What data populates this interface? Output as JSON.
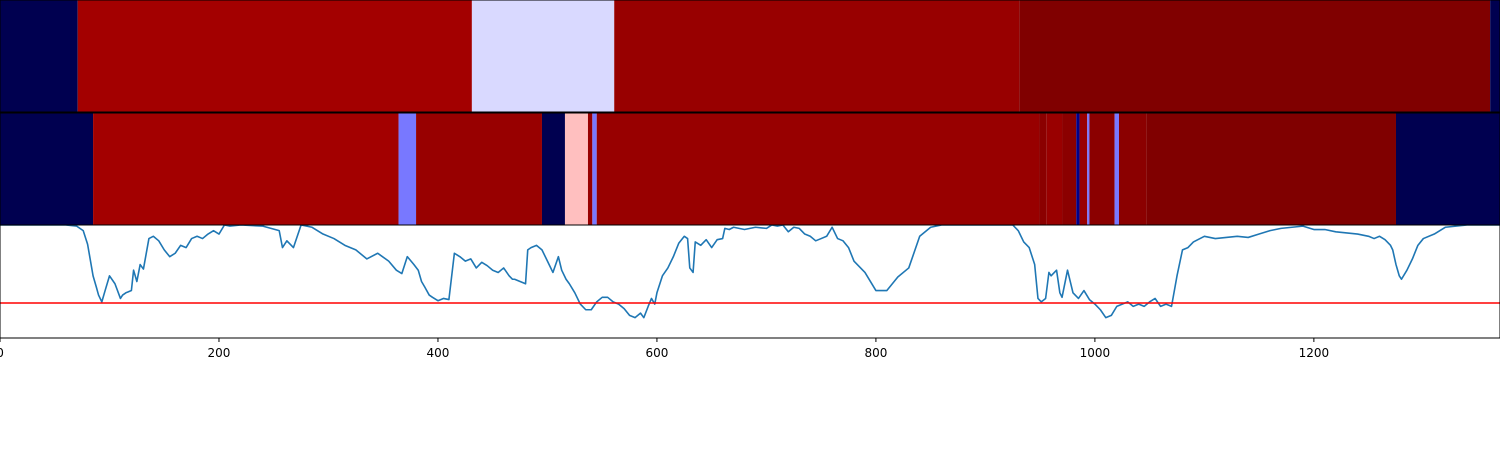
{
  "chart_data": [
    {
      "type": "heatmap",
      "panel": "segmentation-track-1",
      "x_range": [
        0,
        1370
      ],
      "segments": [
        {
          "start": 0,
          "end": 71,
          "color": "#000050"
        },
        {
          "start": 71,
          "end": 431,
          "color": "#a30000"
        },
        {
          "start": 431,
          "end": 561,
          "color": "#d9d9ff"
        },
        {
          "start": 561,
          "end": 931,
          "color": "#980000"
        },
        {
          "start": 931,
          "end": 1361,
          "color": "#800000"
        },
        {
          "start": 1361,
          "end": 1370,
          "color": "#000050"
        }
      ]
    },
    {
      "type": "heatmap",
      "panel": "segmentation-track-2",
      "x_range": [
        0,
        1370
      ],
      "segments": [
        {
          "start": 0,
          "end": 85,
          "color": "#000050"
        },
        {
          "start": 85,
          "end": 364,
          "color": "#a30000"
        },
        {
          "start": 364,
          "end": 380,
          "color": "#7878ff"
        },
        {
          "start": 380,
          "end": 495,
          "color": "#980000"
        },
        {
          "start": 495,
          "end": 516,
          "color": "#000050"
        },
        {
          "start": 516,
          "end": 537,
          "color": "#ffbfbf"
        },
        {
          "start": 537,
          "end": 541,
          "color": "#980000"
        },
        {
          "start": 541,
          "end": 545,
          "color": "#7878ff"
        },
        {
          "start": 545,
          "end": 949,
          "color": "#980000"
        },
        {
          "start": 949,
          "end": 956,
          "color": "#8b0000"
        },
        {
          "start": 956,
          "end": 970,
          "color": "#990000"
        },
        {
          "start": 970,
          "end": 983,
          "color": "#8b0000"
        },
        {
          "start": 983,
          "end": 986,
          "color": "#00008b"
        },
        {
          "start": 986,
          "end": 993,
          "color": "#990000"
        },
        {
          "start": 993,
          "end": 995,
          "color": "#7878ff"
        },
        {
          "start": 995,
          "end": 1018,
          "color": "#8b0000"
        },
        {
          "start": 1018,
          "end": 1022,
          "color": "#7878ff"
        },
        {
          "start": 1022,
          "end": 1047,
          "color": "#8b0000"
        },
        {
          "start": 1047,
          "end": 1275,
          "color": "#800000"
        },
        {
          "start": 1275,
          "end": 1370,
          "color": "#000050"
        }
      ]
    },
    {
      "type": "line",
      "panel": "signal",
      "xlim": [
        0,
        1370
      ],
      "ylim": [
        0,
        1
      ],
      "xticks": [
        0,
        200,
        400,
        600,
        800,
        1000,
        1200
      ],
      "threshold": {
        "y": 0.31,
        "color": "#ff0000"
      },
      "series": [
        {
          "color": "#1f77b4",
          "x": [
            0,
            60,
            70,
            76,
            80,
            85,
            88,
            90,
            93,
            96,
            100,
            105,
            110,
            112,
            115,
            120,
            122,
            125,
            128,
            131,
            136,
            140,
            145,
            150,
            155,
            160,
            165,
            170,
            175,
            180,
            185,
            190,
            195,
            200,
            205,
            210,
            220,
            240,
            255,
            258,
            262,
            268,
            275,
            285,
            295,
            305,
            315,
            325,
            335,
            345,
            355,
            362,
            367,
            372,
            378,
            382,
            385,
            388,
            392,
            395,
            400,
            405,
            410,
            415,
            420,
            425,
            430,
            435,
            440,
            445,
            450,
            455,
            460,
            465,
            468,
            470,
            480,
            482,
            485,
            490,
            495,
            500,
            505,
            510,
            513,
            517,
            520,
            525,
            530,
            535,
            540,
            545,
            550,
            555,
            560,
            565,
            570,
            575,
            580,
            585,
            588,
            592,
            595,
            598,
            600,
            605,
            610,
            615,
            620,
            625,
            628,
            630,
            633,
            635,
            640,
            645,
            650,
            655,
            660,
            662,
            666,
            670,
            680,
            690,
            700,
            705,
            710,
            715,
            720,
            725,
            730,
            735,
            740,
            745,
            750,
            755,
            760,
            765,
            770,
            775,
            780,
            790,
            800,
            810,
            820,
            830,
            840,
            850,
            860,
            870,
            880,
            890,
            900,
            910,
            915,
            920,
            925,
            930,
            935,
            940,
            945,
            948,
            951,
            955,
            958,
            960,
            965,
            968,
            970,
            975,
            980,
            985,
            990,
            995,
            1000,
            1005,
            1010,
            1015,
            1020,
            1025,
            1030,
            1035,
            1040,
            1045,
            1050,
            1055,
            1060,
            1065,
            1070,
            1075,
            1080,
            1085,
            1090,
            1100,
            1110,
            1120,
            1130,
            1140,
            1150,
            1160,
            1170,
            1180,
            1190,
            1200,
            1210,
            1220,
            1230,
            1240,
            1250,
            1255,
            1260,
            1265,
            1270,
            1272,
            1275,
            1278,
            1280,
            1285,
            1290,
            1295,
            1300,
            1310,
            1320,
            1330,
            1340,
            1350,
            1360,
            1370
          ],
          "y": [
            1.0,
            1.0,
            0.99,
            0.95,
            0.83,
            0.55,
            0.45,
            0.38,
            0.32,
            0.42,
            0.55,
            0.48,
            0.35,
            0.38,
            0.4,
            0.42,
            0.6,
            0.5,
            0.65,
            0.61,
            0.88,
            0.9,
            0.86,
            0.78,
            0.72,
            0.75,
            0.82,
            0.8,
            0.88,
            0.9,
            0.88,
            0.92,
            0.95,
            0.92,
            1.0,
            0.99,
            1.0,
            0.99,
            0.95,
            0.8,
            0.86,
            0.8,
            1.0,
            0.98,
            0.92,
            0.88,
            0.82,
            0.78,
            0.7,
            0.75,
            0.68,
            0.6,
            0.57,
            0.72,
            0.65,
            0.6,
            0.5,
            0.45,
            0.38,
            0.36,
            0.33,
            0.35,
            0.34,
            0.75,
            0.72,
            0.68,
            0.7,
            0.62,
            0.67,
            0.64,
            0.6,
            0.58,
            0.62,
            0.55,
            0.52,
            0.52,
            0.48,
            0.78,
            0.8,
            0.82,
            0.78,
            0.68,
            0.58,
            0.72,
            0.6,
            0.52,
            0.48,
            0.4,
            0.3,
            0.25,
            0.25,
            0.32,
            0.36,
            0.36,
            0.32,
            0.3,
            0.26,
            0.2,
            0.18,
            0.22,
            0.18,
            0.28,
            0.35,
            0.3,
            0.4,
            0.55,
            0.62,
            0.72,
            0.84,
            0.9,
            0.88,
            0.62,
            0.58,
            0.85,
            0.82,
            0.87,
            0.8,
            0.87,
            0.88,
            0.97,
            0.96,
            0.98,
            0.96,
            0.98,
            0.97,
            1.0,
            0.99,
            1.0,
            0.94,
            0.98,
            0.97,
            0.92,
            0.9,
            0.86,
            0.88,
            0.9,
            0.98,
            0.88,
            0.86,
            0.8,
            0.68,
            0.58,
            0.42,
            0.42,
            0.54,
            0.62,
            0.9,
            0.98,
            1.0,
            1.0,
            1.0,
            1.0,
            1.0,
            1.0,
            1.0,
            1.0,
            1.0,
            0.95,
            0.85,
            0.8,
            0.65,
            0.35,
            0.32,
            0.35,
            0.58,
            0.55,
            0.6,
            0.4,
            0.36,
            0.6,
            0.4,
            0.35,
            0.42,
            0.34,
            0.3,
            0.25,
            0.18,
            0.2,
            0.28,
            0.3,
            0.32,
            0.28,
            0.3,
            0.28,
            0.32,
            0.35,
            0.28,
            0.3,
            0.28,
            0.55,
            0.78,
            0.8,
            0.85,
            0.9,
            0.88,
            0.89,
            0.9,
            0.89,
            0.92,
            0.95,
            0.97,
            0.98,
            0.99,
            0.96,
            0.96,
            0.94,
            0.93,
            0.92,
            0.9,
            0.88,
            0.9,
            0.87,
            0.82,
            0.78,
            0.65,
            0.55,
            0.52,
            0.6,
            0.7,
            0.82,
            0.88,
            0.92,
            0.98,
            0.99,
            1.0,
            1.0,
            1.0,
            1.0
          ]
        }
      ]
    }
  ]
}
